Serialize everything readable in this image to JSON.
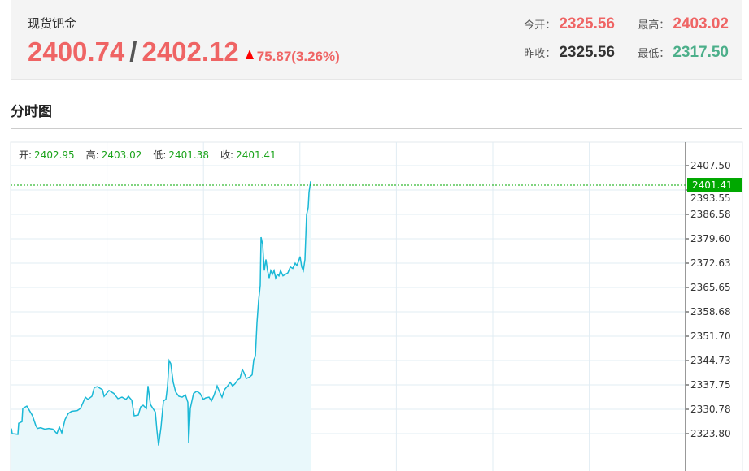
{
  "quote": {
    "name": "现货钯金",
    "bid": "2400.74",
    "separator": "/",
    "ask": "2402.12",
    "change": "75.87(3.26%)",
    "direction_icon": "arrow-up-icon",
    "open_label": "今开：",
    "open": "2325.56",
    "high_label": "最高：",
    "high": "2403.02",
    "prev_close_label": "昨收：",
    "prev_close": "2325.56",
    "low_label": "最低：",
    "low": "2317.50"
  },
  "section_title": "分时图",
  "ohlc": {
    "open_label": "开:",
    "open": "2402.95",
    "high_label": "高:",
    "high": "2403.02",
    "low_label": "低:",
    "low": "2401.38",
    "close_label": "收:",
    "close": "2401.41"
  },
  "colors": {
    "up": "#ef6464",
    "down": "#4caf8a",
    "line": "#1ab8d6",
    "fill": "#e9f8fb",
    "current": "#00a800"
  },
  "chart_data": {
    "type": "area",
    "y_ticks": [
      "2407.50",
      "2393.55",
      "2386.58",
      "2379.60",
      "2372.63",
      "2365.65",
      "2358.68",
      "2351.70",
      "2344.73",
      "2337.75",
      "2330.78",
      "2323.80"
    ],
    "current_price_label": "2401.41",
    "current_price": 2401.41,
    "ylim": [
      2323.8,
      2407.5
    ],
    "xlim": [
      0,
      830
    ],
    "grid": true,
    "points": [
      [
        1,
        2325.43
      ],
      [
        2,
        2323.8
      ],
      [
        9,
        2323.57
      ],
      [
        10,
        2327.05
      ],
      [
        14,
        2327.52
      ],
      [
        15,
        2331.7
      ],
      [
        20,
        2332.4
      ],
      [
        27,
        2329.38
      ],
      [
        31,
        2326.36
      ],
      [
        33,
        2325.43
      ],
      [
        37,
        2325.66
      ],
      [
        42,
        2325.19
      ],
      [
        47,
        2325.43
      ],
      [
        52,
        2325.19
      ],
      [
        57,
        2323.8
      ],
      [
        60,
        2325.89
      ],
      [
        63,
        2324.03
      ],
      [
        67,
        2328.22
      ],
      [
        71,
        2330.08
      ],
      [
        75,
        2330.78
      ],
      [
        82,
        2331.01
      ],
      [
        86,
        2331.7
      ],
      [
        92,
        2335.19
      ],
      [
        95,
        2334.5
      ],
      [
        100,
        2335.43
      ],
      [
        103,
        2338.22
      ],
      [
        107,
        2338.45
      ],
      [
        110,
        2337.98
      ],
      [
        113,
        2337.52
      ],
      [
        115,
        2335.43
      ],
      [
        118,
        2336.36
      ],
      [
        121,
        2337.28
      ],
      [
        127,
        2336.36
      ],
      [
        132,
        2334.73
      ],
      [
        137,
        2335.19
      ],
      [
        142,
        2334.5
      ],
      [
        145,
        2335.43
      ],
      [
        149,
        2334.26
      ],
      [
        152,
        2329.38
      ],
      [
        157,
        2329.61
      ],
      [
        160,
        2332.17
      ],
      [
        163,
        2332.64
      ],
      [
        167,
        2331.7
      ],
      [
        169,
        2338.68
      ],
      [
        172,
        2332.87
      ],
      [
        175,
        2331.7
      ],
      [
        178,
        2330.54
      ],
      [
        180,
        2324.73
      ],
      [
        182,
        2320.08
      ],
      [
        185,
        2325.89
      ],
      [
        188,
        2334.03
      ],
      [
        191,
        2334.5
      ],
      [
        193,
        2338.68
      ],
      [
        195,
        2346.59
      ],
      [
        197,
        2345.66
      ],
      [
        200,
        2339.84
      ],
      [
        203,
        2336.82
      ],
      [
        207,
        2335.43
      ],
      [
        211,
        2335.19
      ],
      [
        215,
        2335.89
      ],
      [
        218,
        2333.57
      ],
      [
        219,
        2321.01
      ],
      [
        221,
        2331.7
      ],
      [
        225,
        2336.36
      ],
      [
        229,
        2337.05
      ],
      [
        233,
        2336.36
      ],
      [
        237,
        2334.5
      ],
      [
        240,
        2334.96
      ],
      [
        244,
        2335.19
      ],
      [
        247,
        2334.03
      ],
      [
        250,
        2335.66
      ],
      [
        254,
        2338.68
      ],
      [
        257,
        2336.82
      ],
      [
        260,
        2335.19
      ],
      [
        263,
        2337.52
      ],
      [
        267,
        2338.68
      ],
      [
        270,
        2339.84
      ],
      [
        273,
        2338.68
      ],
      [
        276,
        2339.38
      ],
      [
        279,
        2340.54
      ],
      [
        282,
        2341.01
      ],
      [
        285,
        2343.8
      ],
      [
        287,
        2342.87
      ],
      [
        290,
        2341.01
      ],
      [
        294,
        2341.47
      ],
      [
        297,
        2342.17
      ],
      [
        299,
        2346.82
      ],
      [
        301,
        2347.98
      ],
      [
        303,
        2358.44
      ],
      [
        305,
        2365.42
      ],
      [
        307,
        2370.07
      ],
      [
        308,
        2385.18
      ],
      [
        310,
        2382.86
      ],
      [
        312,
        2374.72
      ],
      [
        314,
        2378.21
      ],
      [
        316,
        2374.72
      ],
      [
        318,
        2372.39
      ],
      [
        320,
        2374.72
      ],
      [
        322,
        2373.56
      ],
      [
        324,
        2374.72
      ],
      [
        326,
        2372.39
      ],
      [
        328,
        2373.56
      ],
      [
        330,
        2373.09
      ],
      [
        332,
        2374.72
      ],
      [
        335,
        2373.09
      ],
      [
        338,
        2373.56
      ],
      [
        341,
        2374.02
      ],
      [
        344,
        2375.88
      ],
      [
        347,
        2375.42
      ],
      [
        350,
        2377.04
      ],
      [
        352,
        2376.34
      ],
      [
        354,
        2377.51
      ],
      [
        356,
        2379.13
      ],
      [
        358,
        2375.88
      ],
      [
        360,
        2374.72
      ],
      [
        362,
        2378.21
      ],
      [
        364,
        2392.15
      ],
      [
        366,
        2394.48
      ],
      [
        367,
        2399.13
      ],
      [
        369,
        2402.62
      ]
    ]
  }
}
